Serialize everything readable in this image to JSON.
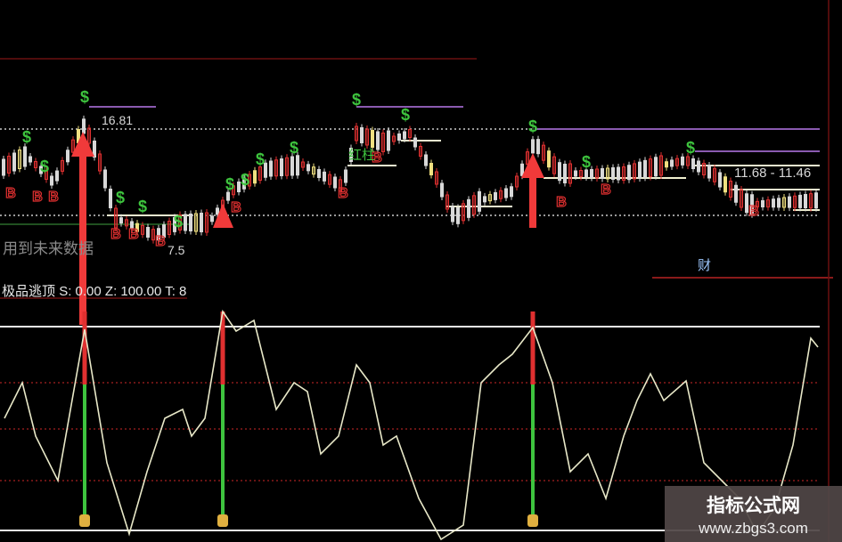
{
  "chart": {
    "price_labels": {
      "high": "16.81",
      "low": "7.5",
      "range": "11.68 - 11.46"
    },
    "future_data_note": "用到未来数据",
    "bar_label": "红柱",
    "finance_tab": "财",
    "indicator": {
      "name": "极品逃顶",
      "s": "S: 0.00",
      "z": "Z: 100.00",
      "t": "T: 8"
    },
    "sell_marker": "$",
    "buy_marker": "B",
    "colors": {
      "up": "#e03030",
      "down": "#d8d8d8",
      "yellow": "#f0e080",
      "sell": "#3ec43e",
      "arrow": "#f03a3a",
      "oscillator": "#e8e8c8"
    }
  },
  "watermark": {
    "title": "指标公式网",
    "url": "www.zbgs3.com"
  }
}
